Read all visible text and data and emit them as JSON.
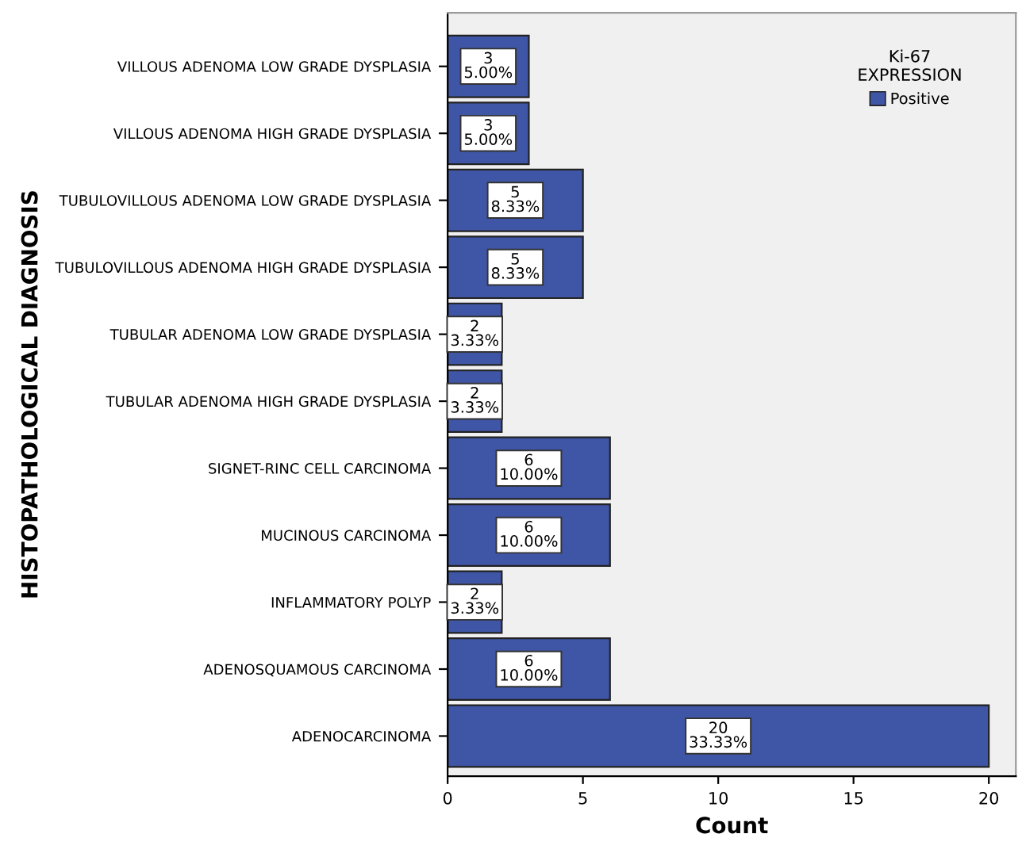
{
  "chart_data": {
    "type": "bar",
    "orientation": "horizontal",
    "xlabel": "Count",
    "ylabel": "HISTOPATHOLOGICAL DIAGNOSIS",
    "legend_title": "Ki-67\nEXPRESSION",
    "legend": "top right",
    "categories": [
      "VILLOUS ADENOMA LOW GRADE DYSPLASIA",
      "VILLOUS ADENOMA HIGH GRADE DYSPLASIA",
      "TUBULOVILLOUS ADENOMA LOW GRADE DYSPLASIA",
      "TUBULOVILLOUS ADENOMA HIGH GRADE DYSPLASIA",
      "TUBULAR ADENOMA LOW GRADE DYSPLASIA",
      "TUBULAR ADENOMA HIGH GRADE DYSPLASIA",
      "SIGNET-RINC CELL CARCINOMA",
      "MUCINOUS CARCINOMA",
      "INFLAMMATORY POLYP",
      "ADENOSQUAMOUS CARCINOMA",
      "ADENOCARCINOMA"
    ],
    "series": [
      {
        "name": "Positive",
        "color": "#3f56a6",
        "values": [
          3,
          3,
          5,
          5,
          2,
          2,
          6,
          6,
          2,
          6,
          20
        ],
        "value_labels": [
          "3\n5.00%",
          "3\n5.00%",
          "5\n8.33%",
          "5\n8.33%",
          "2\n3.33%",
          "2\n3.33%",
          "6\n10.00%",
          "6\n10.00%",
          "2\n3.33%",
          "6\n10.00%",
          "20\n33.33%"
        ]
      }
    ],
    "xlim": [
      0,
      21
    ],
    "xticks": [
      0,
      5,
      10,
      15,
      20
    ],
    "grid": false
  }
}
